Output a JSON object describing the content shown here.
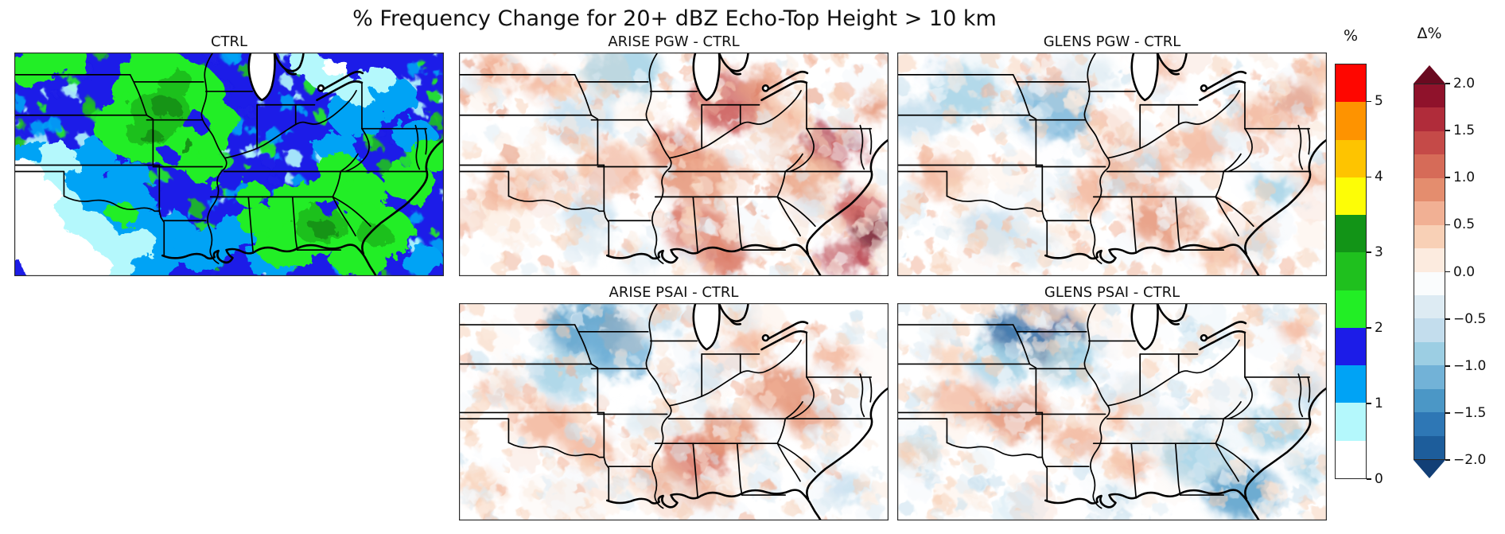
{
  "chart_data": {
    "type": "heatmap",
    "title": "% Frequency Change for 20+ dBZ Echo-Top Height > 10 km",
    "geography": "Central and eastern United States with state borders, Great Lakes, Gulf and Atlantic coasts",
    "layout": {
      "rows": 2,
      "cols": 3,
      "grid": [
        [
          "CTRL",
          "ARISE PGW - CTRL",
          "GLENS PGW - CTRL"
        ],
        [
          null,
          "ARISE PSAI - CTRL",
          "GLENS PSAI - CTRL"
        ]
      ]
    },
    "panels": [
      {
        "id": "ctrl",
        "title": "CTRL",
        "kind": "control",
        "colorbar": "%",
        "summary": "Control-run frequency (%): large 2-3% green maxima over the mid-Mississippi valley and the Southeast, 1.5-2% blue over most of the domain, below 1% (white/cyan) over the southern plains.",
        "seed": 11,
        "base": 1.7,
        "speckles": {
          "n": 260,
          "rmin": 3,
          "rmax": 11,
          "amp": 1.15
        },
        "low_blobs": [
          [
            0.12,
            0.62,
            0.1,
            1.2
          ],
          [
            0.22,
            0.78,
            0.11,
            1.2
          ],
          [
            0.3,
            0.92,
            0.09,
            1.2
          ],
          [
            0.36,
            0.8,
            0.06,
            1.2
          ],
          [
            0.44,
            0.88,
            0.07,
            1.2
          ],
          [
            0.52,
            0.8,
            0.05,
            1.2
          ],
          [
            0.6,
            0.93,
            0.06,
            1.2
          ],
          [
            0.05,
            0.5,
            0.07,
            1.2
          ],
          [
            0.18,
            0.47,
            0.06,
            1.2
          ],
          [
            0.27,
            0.55,
            0.05,
            1.2
          ],
          [
            0.8,
            0.28,
            0.07,
            1.2
          ],
          [
            0.88,
            0.2,
            0.06,
            1.2
          ],
          [
            0.93,
            0.37,
            0.05,
            1.2
          ],
          [
            0.75,
            0.42,
            0.05,
            1.2
          ],
          [
            0.95,
            0.93,
            0.05,
            1.2
          ],
          [
            0.25,
            0.68,
            0.08,
            1.2
          ],
          [
            0.07,
            0.7,
            0.09,
            0.8
          ],
          [
            0.15,
            0.83,
            0.09,
            0.8
          ],
          [
            0.05,
            0.57,
            0.07,
            0.8
          ],
          [
            0.22,
            0.93,
            0.07,
            0.8
          ],
          [
            0.1,
            0.48,
            0.05,
            0.8
          ],
          [
            0.73,
            0.1,
            0.05,
            0.8
          ],
          [
            0.79,
            0.17,
            0.04,
            0.8
          ],
          [
            0.68,
            0.05,
            0.04,
            0.8
          ],
          [
            0.85,
            0.12,
            0.04,
            0.8
          ],
          [
            0.28,
            0.85,
            0.05,
            0.8
          ],
          [
            0.03,
            0.8,
            0.09,
            0.2
          ],
          [
            0.1,
            0.92,
            0.09,
            0.2
          ],
          [
            0.05,
            0.65,
            0.06,
            0.2
          ],
          [
            0.17,
            0.97,
            0.06,
            0.2
          ],
          [
            0.02,
            0.55,
            0.05,
            0.2
          ],
          [
            0.75,
            0.07,
            0.03,
            0.2
          ]
        ],
        "high_blobs": [
          [
            0.36,
            0.2,
            0.13,
            2.2
          ],
          [
            0.3,
            0.33,
            0.11,
            2.2
          ],
          [
            0.4,
            0.4,
            0.09,
            2.2
          ],
          [
            0.33,
            0.09,
            0.08,
            2.2
          ],
          [
            0.46,
            0.3,
            0.06,
            2.2
          ],
          [
            0.45,
            0.52,
            0.05,
            2.2
          ],
          [
            0.04,
            0.06,
            0.06,
            2.2
          ],
          [
            0.12,
            0.03,
            0.05,
            2.2
          ],
          [
            0.7,
            0.74,
            0.12,
            2.2
          ],
          [
            0.78,
            0.64,
            0.09,
            2.2
          ],
          [
            0.85,
            0.8,
            0.08,
            2.2
          ],
          [
            0.63,
            0.86,
            0.07,
            2.2
          ],
          [
            0.92,
            0.58,
            0.06,
            2.2
          ],
          [
            0.97,
            0.46,
            0.05,
            2.2
          ],
          [
            0.8,
            0.93,
            0.06,
            2.2
          ],
          [
            0.76,
            0.52,
            0.05,
            2.2
          ],
          [
            0.25,
            0.72,
            0.035,
            2.2
          ],
          [
            0.55,
            0.63,
            0.04,
            2.2
          ],
          [
            0.57,
            0.75,
            0.05,
            2.2
          ],
          [
            0.34,
            0.26,
            0.07,
            2.7
          ],
          [
            0.31,
            0.36,
            0.05,
            2.7
          ],
          [
            0.71,
            0.77,
            0.06,
            2.7
          ],
          [
            0.38,
            0.14,
            0.04,
            2.7
          ],
          [
            0.84,
            0.82,
            0.04,
            2.7
          ],
          [
            0.35,
            0.24,
            0.035,
            3.2
          ],
          [
            0.32,
            0.38,
            0.025,
            3.2
          ],
          [
            0.72,
            0.79,
            0.03,
            3.2
          ],
          [
            0.4,
            0.42,
            0.02,
            3.2
          ],
          [
            0.42,
            0.31,
            0.03,
            1.7
          ],
          [
            0.36,
            0.46,
            0.022,
            1.7
          ],
          [
            0.74,
            0.7,
            0.025,
            1.7
          ]
        ]
      },
      {
        "id": "arise_pgw",
        "title": "ARISE PGW - CTRL",
        "kind": "diff",
        "colorbar": "Δ%",
        "summary": "Mostly positive (red) change up to +2% with a strong maximum near the Southeast Atlantic coast and over Ohio/Indiana; weak negative patches over the upper Midwest.",
        "seed": 21,
        "bias": 0.18,
        "features": [
          [
            0.38,
            0.08,
            0.09,
            -0.9
          ],
          [
            0.28,
            0.3,
            0.08,
            -0.7
          ],
          [
            0.3,
            0.72,
            0.06,
            -0.7
          ],
          [
            0.3,
            0.85,
            0.05,
            -0.5
          ],
          [
            0.43,
            0.92,
            0.05,
            -0.5
          ],
          [
            0.83,
            0.68,
            0.035,
            -0.4
          ],
          [
            0.08,
            0.08,
            0.06,
            0.6
          ],
          [
            0.2,
            0.14,
            0.05,
            0.5
          ],
          [
            0.63,
            0.22,
            0.09,
            1.3
          ],
          [
            0.7,
            0.15,
            0.05,
            0.8
          ],
          [
            0.5,
            0.43,
            0.06,
            1.0
          ],
          [
            0.55,
            0.55,
            0.09,
            0.8
          ],
          [
            0.35,
            0.52,
            0.08,
            0.7
          ],
          [
            0.12,
            0.6,
            0.07,
            0.6
          ],
          [
            0.56,
            0.8,
            0.08,
            1.1
          ],
          [
            0.62,
            0.92,
            0.06,
            1.0
          ],
          [
            0.87,
            0.42,
            0.07,
            1.5
          ],
          [
            0.8,
            0.55,
            0.07,
            0.9
          ],
          [
            0.93,
            0.7,
            0.06,
            1.3
          ],
          [
            0.97,
            0.8,
            0.055,
            2.3
          ],
          [
            0.9,
            0.92,
            0.06,
            1.5
          ],
          [
            0.75,
            0.3,
            0.06,
            0.7
          ],
          [
            0.97,
            0.25,
            0.04,
            0.8
          ]
        ],
        "noise": [
          {
            "n": 60,
            "rmin": 16,
            "rmax": 34,
            "amp": 0.7,
            "alpha": 0.18
          },
          {
            "n": 380,
            "rmin": 3,
            "rmax": 13,
            "amp": 0.6,
            "alpha": 0.5
          }
        ]
      },
      {
        "id": "glens_pgw",
        "title": "GLENS PGW - CTRL",
        "kind": "diff",
        "colorbar": "Δ%",
        "summary": "Mixed signal: negative (blue) anomalies over the upper Missouri valley and northwest, weak positive (red) anomalies over the mid-South, Southeast and northeast.",
        "seed": 31,
        "bias": 0.05,
        "features": [
          [
            0.36,
            0.25,
            0.1,
            -1.2
          ],
          [
            0.15,
            0.18,
            0.09,
            -0.8
          ],
          [
            0.05,
            0.3,
            0.07,
            -0.7
          ],
          [
            0.22,
            0.8,
            0.07,
            -0.6
          ],
          [
            0.32,
            0.87,
            0.06,
            -0.5
          ],
          [
            0.88,
            0.62,
            0.05,
            -0.8
          ],
          [
            0.83,
            0.86,
            0.05,
            -0.6
          ],
          [
            0.45,
            0.1,
            0.06,
            -0.5
          ],
          [
            0.6,
            0.08,
            0.05,
            0.5
          ],
          [
            0.55,
            0.52,
            0.09,
            0.7
          ],
          [
            0.62,
            0.75,
            0.08,
            0.8
          ],
          [
            0.7,
            0.42,
            0.07,
            0.6
          ],
          [
            0.93,
            0.22,
            0.06,
            0.9
          ],
          [
            0.97,
            0.55,
            0.04,
            0.6
          ],
          [
            0.45,
            0.62,
            0.06,
            0.5
          ],
          [
            0.83,
            0.3,
            0.06,
            0.5
          ],
          [
            0.1,
            0.55,
            0.06,
            0.5
          ],
          [
            0.75,
            0.9,
            0.05,
            0.6
          ],
          [
            0.98,
            0.08,
            0.04,
            0.6
          ]
        ],
        "noise": [
          {
            "n": 60,
            "rmin": 16,
            "rmax": 34,
            "amp": 0.7,
            "alpha": 0.18
          },
          {
            "n": 380,
            "rmin": 3,
            "rmax": 13,
            "amp": 0.6,
            "alpha": 0.5
          }
        ]
      },
      {
        "id": "arise_psai",
        "title": "ARISE PSAI - CTRL",
        "kind": "diff",
        "colorbar": "Δ%",
        "summary": "Strong negative (blue) anomaly over the upper Midwest; moderate positive (red) anomalies over the Southeast, Appalachians and southern plains.",
        "seed": 41,
        "bias": 0.05,
        "features": [
          [
            0.3,
            0.11,
            0.1,
            -1.5
          ],
          [
            0.37,
            0.22,
            0.08,
            -1.2
          ],
          [
            0.25,
            0.33,
            0.08,
            -0.9
          ],
          [
            0.48,
            0.07,
            0.05,
            -0.7
          ],
          [
            0.57,
            0.33,
            0.05,
            -0.6
          ],
          [
            0.43,
            0.55,
            0.05,
            -0.5
          ],
          [
            0.9,
            0.85,
            0.05,
            -0.6
          ],
          [
            0.65,
            0.06,
            0.04,
            -0.5
          ],
          [
            0.55,
            0.72,
            0.08,
            1.0
          ],
          [
            0.63,
            0.6,
            0.07,
            0.8
          ],
          [
            0.75,
            0.4,
            0.08,
            0.9
          ],
          [
            0.82,
            0.53,
            0.06,
            0.8
          ],
          [
            0.2,
            0.55,
            0.07,
            0.7
          ],
          [
            0.3,
            0.66,
            0.06,
            0.6
          ],
          [
            0.1,
            0.4,
            0.05,
            0.5
          ],
          [
            0.68,
            0.18,
            0.05,
            0.5
          ],
          [
            0.88,
            0.25,
            0.05,
            0.6
          ],
          [
            0.45,
            0.8,
            0.05,
            0.6
          ],
          [
            0.58,
            0.88,
            0.05,
            0.7
          ],
          [
            0.05,
            0.85,
            0.05,
            0.4
          ]
        ],
        "noise": [
          {
            "n": 60,
            "rmin": 16,
            "rmax": 34,
            "amp": 0.7,
            "alpha": 0.18
          },
          {
            "n": 380,
            "rmin": 3,
            "rmax": 13,
            "amp": 0.6,
            "alpha": 0.5
          }
        ]
      },
      {
        "id": "glens_psai",
        "title": "GLENS PSAI - CTRL",
        "kind": "diff",
        "colorbar": "Δ%",
        "summary": "Predominantly negative (blue): strong minima over the upper Midwest and the Southeast coast; weak positive (red) patches over the southern plains and mid-Mississippi valley.",
        "seed": 51,
        "bias": -0.08,
        "features": [
          [
            0.32,
            0.13,
            0.11,
            -1.8
          ],
          [
            0.4,
            0.26,
            0.08,
            -1.0
          ],
          [
            0.24,
            0.28,
            0.07,
            -0.8
          ],
          [
            0.8,
            0.86,
            0.09,
            -1.3
          ],
          [
            0.7,
            0.72,
            0.08,
            -0.9
          ],
          [
            0.88,
            0.58,
            0.07,
            -0.8
          ],
          [
            0.93,
            0.4,
            0.06,
            -0.6
          ],
          [
            0.6,
            0.55,
            0.06,
            -0.5
          ],
          [
            0.55,
            0.4,
            0.05,
            -0.5
          ],
          [
            0.97,
            0.75,
            0.05,
            -0.9
          ],
          [
            0.5,
            0.9,
            0.05,
            -0.5
          ],
          [
            0.15,
            0.45,
            0.07,
            0.7
          ],
          [
            0.28,
            0.52,
            0.08,
            0.8
          ],
          [
            0.42,
            0.63,
            0.06,
            0.6
          ],
          [
            0.5,
            0.5,
            0.05,
            0.5
          ],
          [
            0.05,
            0.7,
            0.05,
            0.4
          ],
          [
            0.35,
            0.05,
            0.04,
            0.4
          ],
          [
            0.93,
            0.12,
            0.04,
            0.5
          ],
          [
            0.12,
            0.25,
            0.05,
            0.4
          ],
          [
            0.55,
            0.75,
            0.05,
            0.5
          ]
        ],
        "noise": [
          {
            "n": 60,
            "rmin": 16,
            "rmax": 34,
            "amp": 0.7,
            "alpha": 0.18
          },
          {
            "n": 380,
            "rmin": 3,
            "rmax": 13,
            "amp": 0.6,
            "alpha": 0.5
          }
        ]
      }
    ],
    "colorbars": [
      {
        "label": "%",
        "orientation": "vertical",
        "vmin": 0,
        "vmax": 5.5,
        "boundaries": [
          0,
          0.5,
          1,
          1.5,
          2,
          2.5,
          3,
          3.5,
          4,
          4.5,
          5,
          5.5
        ],
        "colors": [
          "#ffffff",
          "#b4f8fc",
          "#00a3f5",
          "#1c1ce8",
          "#22ee25",
          "#1fc01e",
          "#129417",
          "#fdfd06",
          "#fec400",
          "#fe9300",
          "#fe0600"
        ],
        "ticks": [
          5,
          4,
          3,
          2,
          1,
          0
        ],
        "tick_labels": [
          "5",
          "4",
          "3",
          "2",
          "1",
          "0"
        ]
      },
      {
        "label": "Δ%",
        "orientation": "vertical",
        "vmin": -2,
        "vmax": 2,
        "boundaries": [
          -2,
          -1.75,
          -1.5,
          -1.25,
          -1,
          -0.75,
          -0.5,
          -0.25,
          0,
          0.25,
          0.5,
          0.75,
          1,
          1.25,
          1.5,
          1.75,
          2
        ],
        "colors": [
          "#1d5d9b",
          "#2e77b5",
          "#4b97c6",
          "#72b2d7",
          "#9ccee3",
          "#c3dded",
          "#ddebf3",
          "#fafcfd",
          "#fcebdf",
          "#f8d0b6",
          "#f1b094",
          "#e48d6e",
          "#d66b58",
          "#c54a48",
          "#b02c3a",
          "#8f122b"
        ],
        "extend_low": "#123f76",
        "extend_high": "#6a0a20",
        "ticks": [
          2,
          1.5,
          1,
          0.5,
          0,
          -0.5,
          -1,
          -1.5,
          -2
        ],
        "tick_labels": [
          "2.0",
          "1.5",
          "1.0",
          "0.5",
          "0.0",
          "−0.5",
          "−1.0",
          "−1.5",
          "−2.0"
        ]
      }
    ]
  }
}
